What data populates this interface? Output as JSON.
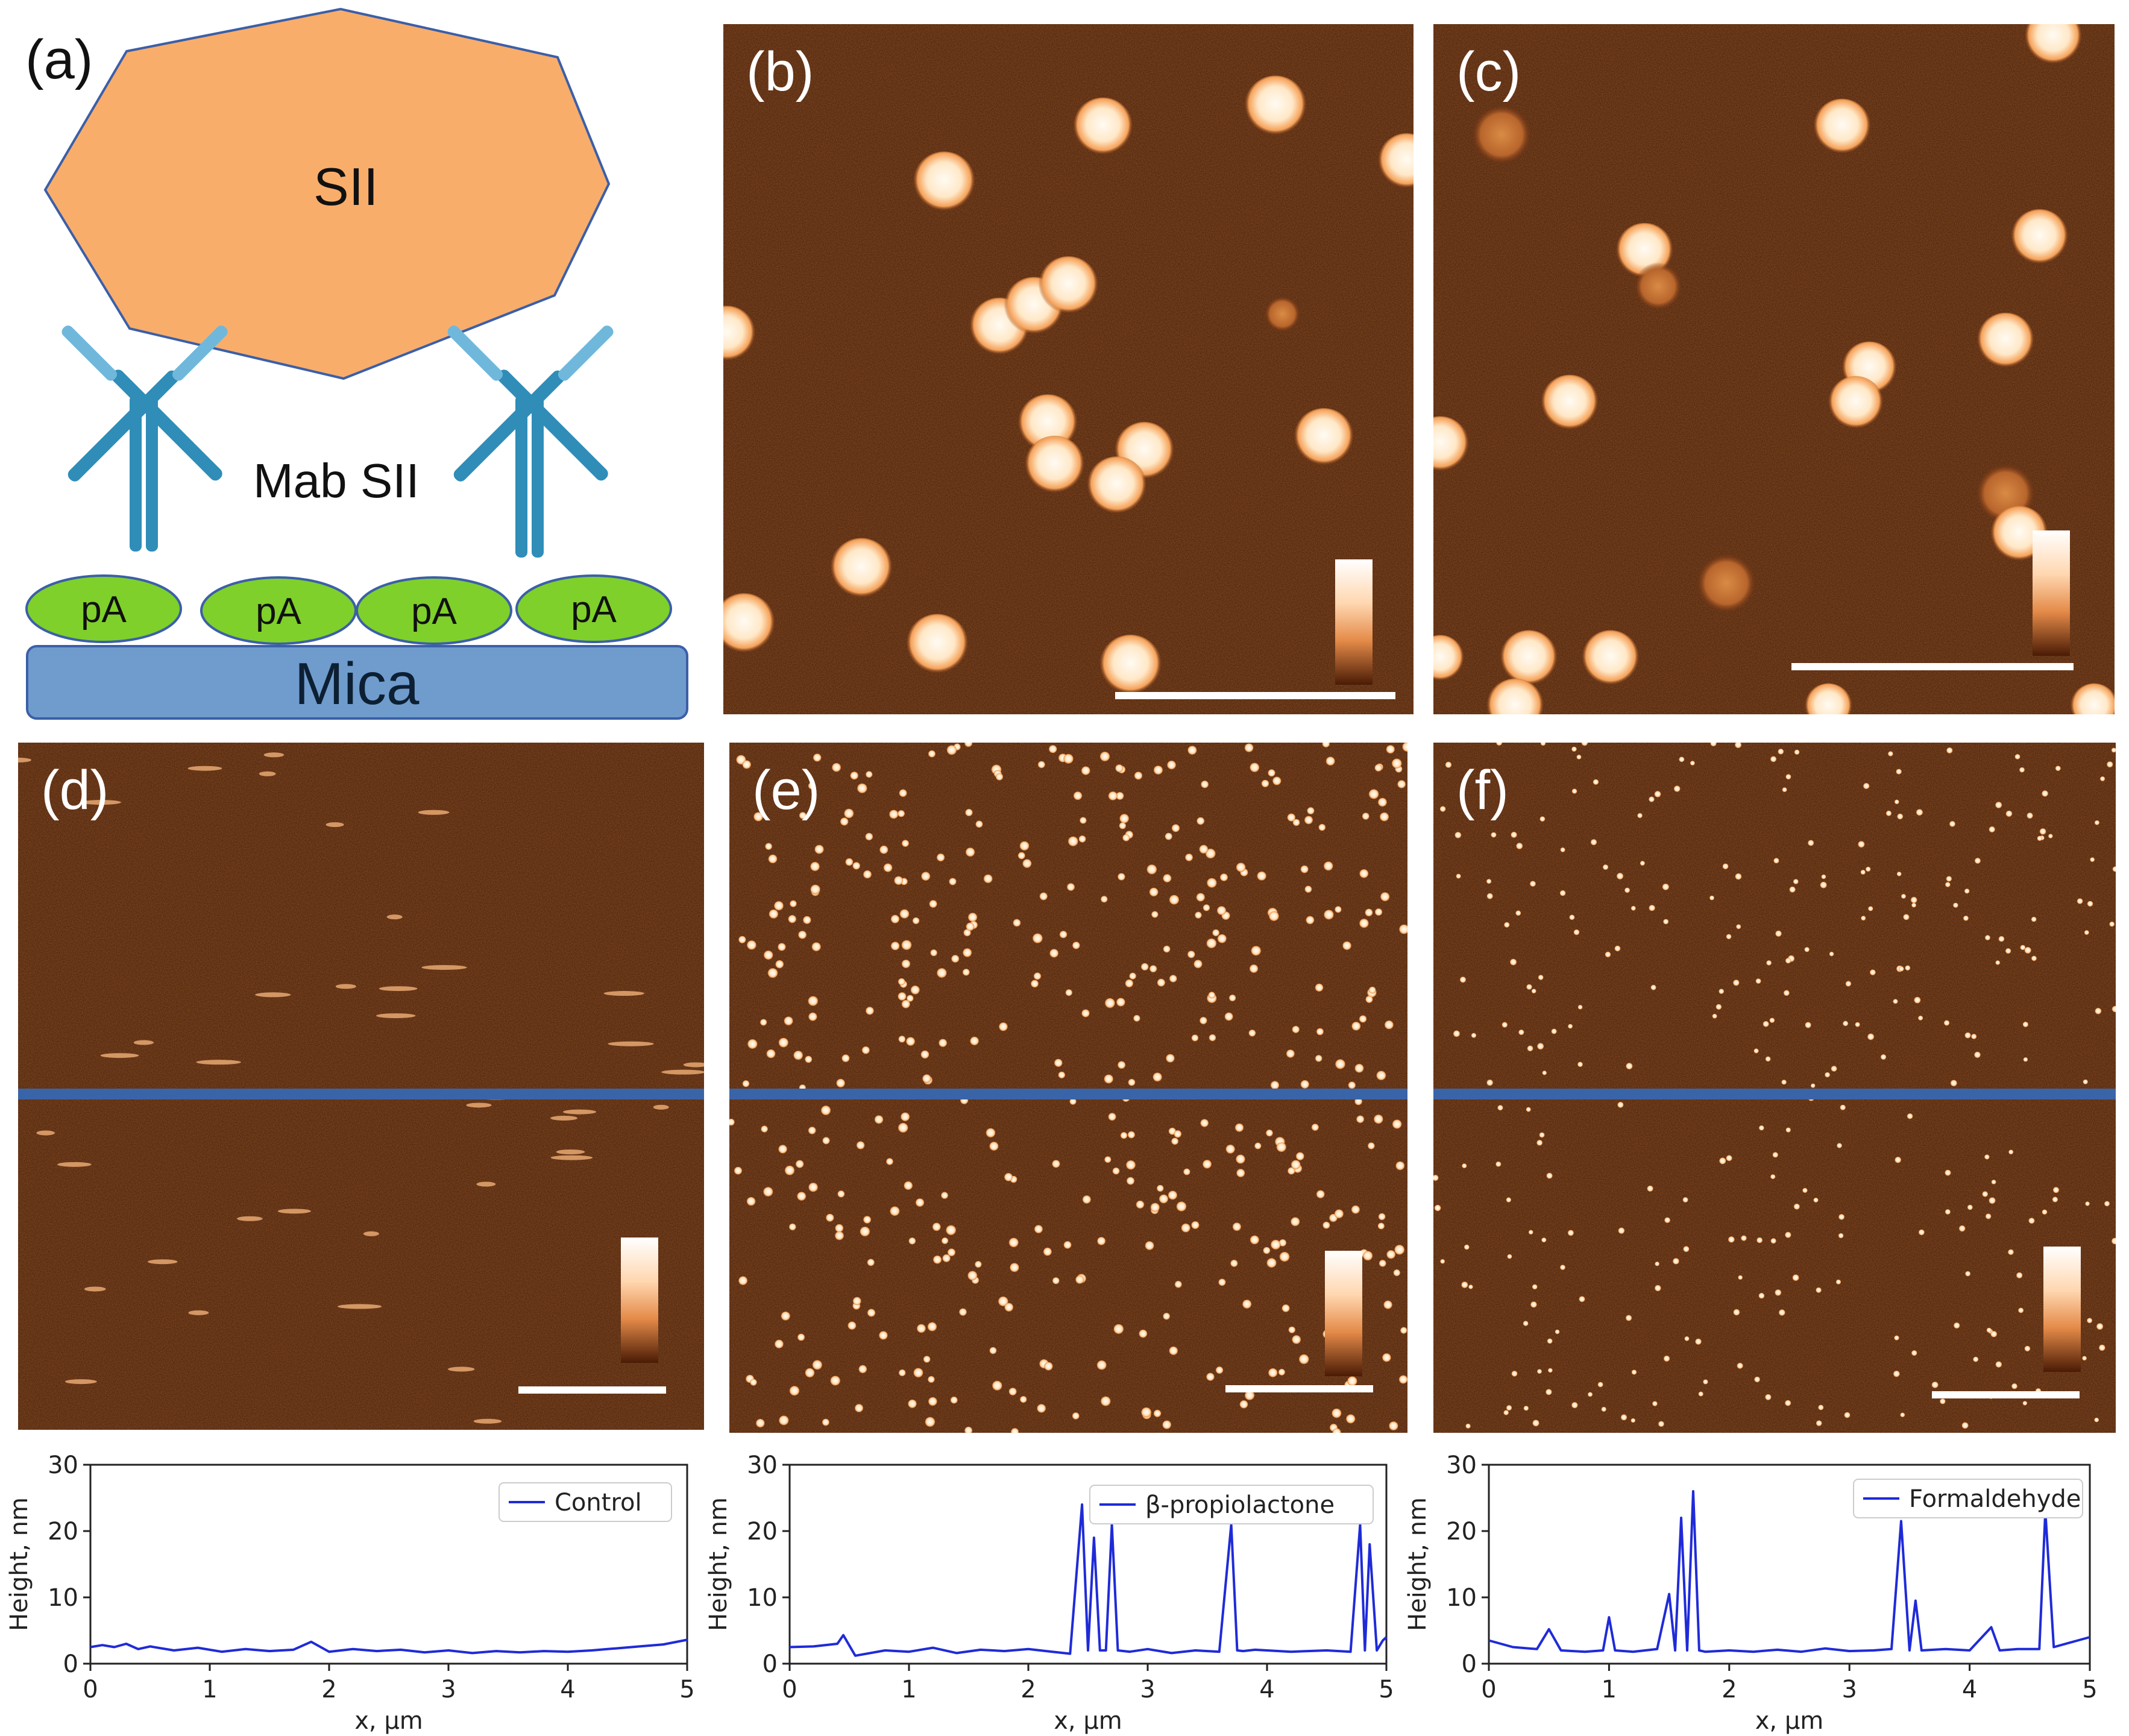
{
  "figure": {
    "panel_labels": [
      "(a)",
      "(b)",
      "(c)",
      "(d)",
      "(e)",
      "(f)"
    ],
    "schematic": {
      "virus_label": "SII",
      "antibody_label": "Mab SII",
      "protein_a_labels": [
        "pA",
        "pA",
        "pA",
        "pA"
      ],
      "substrate_label": "Mica"
    },
    "colors": {
      "afm_background": "#4e210a",
      "afm_particle": "#fff0dc",
      "profile_line": "#1f2bd8",
      "virus_fill": "#f9ad6a",
      "antibody": "#2f8db8",
      "protein_a": "#7fd02a",
      "mica": "#6f9ccc"
    }
  },
  "chart_data": [
    {
      "type": "line",
      "panel": "(d)",
      "xlabel": "x, µm",
      "ylabel": "Height, nm",
      "xlim": [
        0,
        5
      ],
      "ylim": [
        0,
        30
      ],
      "xticks": [
        "0",
        "1",
        "2",
        "3",
        "4",
        "5"
      ],
      "yticks": [
        "0",
        "10",
        "20",
        "30"
      ],
      "legend": "Control",
      "series": [
        {
          "name": "Control",
          "x": [
            0,
            0.1,
            0.2,
            0.3,
            0.4,
            0.5,
            0.7,
            0.9,
            1.1,
            1.3,
            1.5,
            1.7,
            1.85,
            2.0,
            2.2,
            2.4,
            2.6,
            2.8,
            3.0,
            3.2,
            3.4,
            3.6,
            3.8,
            4.0,
            4.2,
            4.4,
            4.6,
            4.8,
            5.0
          ],
          "y": [
            2.5,
            2.8,
            2.5,
            3.0,
            2.2,
            2.6,
            2.0,
            2.4,
            1.8,
            2.2,
            1.9,
            2.1,
            3.3,
            1.8,
            2.2,
            1.9,
            2.1,
            1.7,
            2.0,
            1.6,
            1.9,
            1.7,
            1.9,
            1.8,
            2.0,
            2.3,
            2.6,
            2.9,
            3.6
          ]
        }
      ]
    },
    {
      "type": "line",
      "panel": "(e)",
      "xlabel": "x, µm",
      "ylabel": "Height, nm",
      "xlim": [
        0,
        5
      ],
      "ylim": [
        0,
        30
      ],
      "xticks": [
        "0",
        "1",
        "2",
        "3",
        "4",
        "5"
      ],
      "yticks": [
        "0",
        "10",
        "20",
        "30"
      ],
      "legend": "β-propiolactone",
      "series": [
        {
          "name": "β-propiolactone",
          "x": [
            0,
            0.2,
            0.4,
            0.45,
            0.55,
            0.8,
            1.0,
            1.2,
            1.4,
            1.6,
            1.8,
            2.0,
            2.2,
            2.35,
            2.45,
            2.5,
            2.55,
            2.6,
            2.65,
            2.7,
            2.75,
            2.85,
            3.0,
            3.2,
            3.4,
            3.6,
            3.7,
            3.75,
            3.8,
            3.9,
            4.2,
            4.5,
            4.7,
            4.78,
            4.82,
            4.86,
            4.92,
            4.97,
            5.0
          ],
          "y": [
            2.5,
            2.6,
            3.0,
            4.3,
            1.2,
            2.0,
            1.8,
            2.4,
            1.6,
            2.1,
            1.9,
            2.2,
            1.8,
            1.5,
            24,
            2,
            19,
            2,
            2,
            21,
            2,
            1.8,
            2.2,
            1.6,
            2.0,
            1.8,
            21,
            2,
            1.9,
            2.1,
            1.8,
            2.0,
            1.8,
            21,
            2,
            18,
            2,
            3.5,
            4.0
          ]
        }
      ]
    },
    {
      "type": "line",
      "panel": "(f)",
      "xlabel": "x, µm",
      "ylabel": "Height, nm",
      "xlim": [
        0,
        5
      ],
      "ylim": [
        0,
        30
      ],
      "xticks": [
        "0",
        "1",
        "2",
        "3",
        "4",
        "5"
      ],
      "yticks": [
        "0",
        "10",
        "20",
        "30"
      ],
      "legend": "Formaldehyde",
      "series": [
        {
          "name": "Formaldehyde",
          "x": [
            0,
            0.2,
            0.4,
            0.5,
            0.6,
            0.8,
            0.95,
            1.0,
            1.05,
            1.2,
            1.4,
            1.5,
            1.55,
            1.6,
            1.65,
            1.7,
            1.75,
            1.8,
            2.0,
            2.2,
            2.4,
            2.6,
            2.8,
            3.0,
            3.2,
            3.35,
            3.43,
            3.5,
            3.55,
            3.6,
            3.8,
            4.0,
            4.18,
            4.25,
            4.4,
            4.58,
            4.63,
            4.7,
            4.9,
            5.0
          ],
          "y": [
            3.5,
            2.5,
            2.2,
            5.2,
            2.0,
            1.8,
            2.0,
            7.0,
            2.0,
            1.8,
            2.2,
            10.5,
            2,
            22,
            2,
            26,
            2,
            1.8,
            2.0,
            1.8,
            2.1,
            1.8,
            2.3,
            1.9,
            2.0,
            2.2,
            21.5,
            2,
            9.5,
            2,
            2.2,
            2.0,
            5.5,
            2,
            2.2,
            2.2,
            23,
            2.5,
            3.5,
            4.0
          ]
        }
      ]
    }
  ]
}
